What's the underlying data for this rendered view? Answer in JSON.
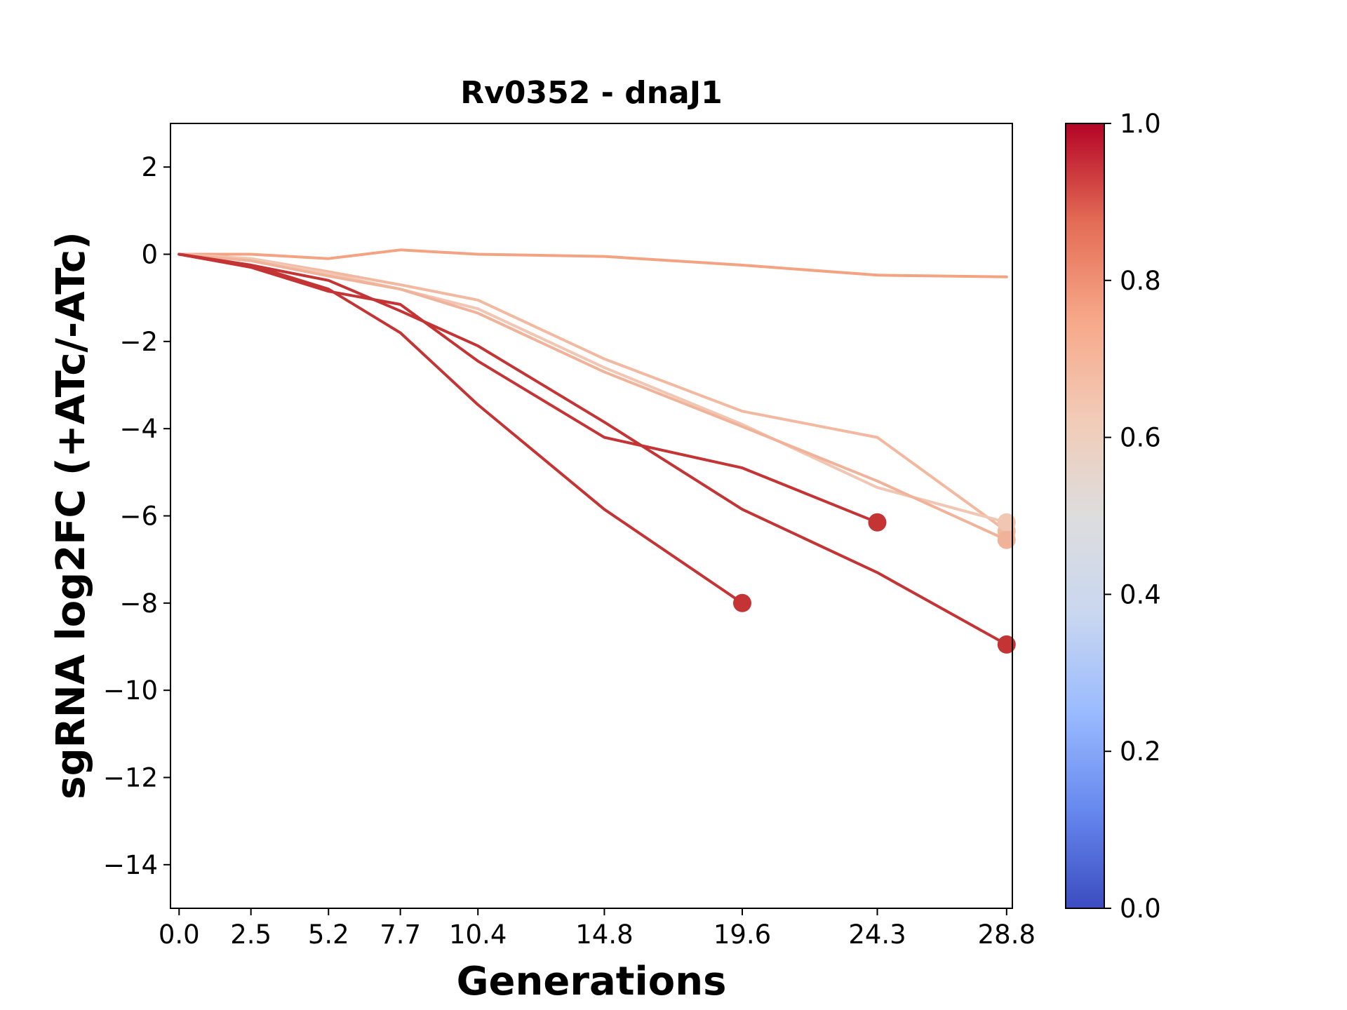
{
  "chart_data": {
    "type": "line",
    "title": "Rv0352 - dnaJ1",
    "xlabel": "Generations",
    "ylabel": "sgRNA log2FC (+ATc/-ATc)",
    "xlim": [
      -0.3,
      29.0
    ],
    "ylim": [
      -15,
      3
    ],
    "x_ticks": [
      0.0,
      2.5,
      5.2,
      7.7,
      10.4,
      14.8,
      19.6,
      24.3,
      28.8
    ],
    "x_tick_labels": [
      "0.0",
      "2.5",
      "5.2",
      "7.7",
      "10.4",
      "14.8",
      "19.6",
      "24.3",
      "28.8"
    ],
    "y_ticks": [
      2,
      0,
      -2,
      -4,
      -6,
      -8,
      -10,
      -12,
      -14
    ],
    "y_tick_labels": [
      "2",
      "0",
      "−2",
      "−4",
      "−6",
      "−8",
      "−10",
      "−12",
      "−14"
    ],
    "colorbar": {
      "colormap": "coolwarm",
      "range": [
        0.0,
        1.0
      ],
      "ticks": [
        0.0,
        0.2,
        0.4,
        0.6,
        0.8,
        1.0
      ],
      "tick_labels": [
        "0.0",
        "0.2",
        "0.4",
        "0.6",
        "0.8",
        "1.0"
      ],
      "stops": [
        "#3b4cc0",
        "#6788ee",
        "#9abbff",
        "#c9d7f0",
        "#dddddd",
        "#f2cbb7",
        "#f7a889",
        "#e36c55",
        "#b40426"
      ]
    },
    "series": [
      {
        "color": "#f4a382",
        "x": [
          0.0,
          2.5,
          5.2,
          7.7,
          10.4,
          14.8,
          19.6,
          24.3,
          28.8
        ],
        "y": [
          0.0,
          0.0,
          -0.1,
          0.1,
          0.0,
          -0.05,
          -0.25,
          -0.48,
          -0.52
        ],
        "end_marker": false
      },
      {
        "color": "#f2b9a0",
        "x": [
          0.0,
          2.5,
          5.2,
          7.7,
          10.4,
          14.8,
          19.6,
          24.3,
          28.8
        ],
        "y": [
          0.0,
          -0.1,
          -0.4,
          -0.7,
          -1.05,
          -2.4,
          -3.6,
          -4.2,
          -6.35
        ],
        "end_marker": true
      },
      {
        "color": "#f1c6b2",
        "x": [
          0.0,
          2.5,
          5.2,
          7.7,
          10.4,
          14.8,
          19.6,
          24.3,
          28.8
        ],
        "y": [
          0.0,
          -0.1,
          -0.45,
          -0.8,
          -1.25,
          -2.6,
          -3.9,
          -5.35,
          -6.15
        ],
        "end_marker": true
      },
      {
        "color": "#f0b39a",
        "x": [
          0.0,
          2.5,
          5.2,
          7.7,
          10.4,
          14.8,
          19.6,
          24.3,
          28.8
        ],
        "y": [
          0.0,
          -0.15,
          -0.5,
          -0.8,
          -1.35,
          -2.7,
          -3.95,
          -5.2,
          -6.55
        ],
        "end_marker": true
      },
      {
        "color": "#c43434",
        "x": [
          0.0,
          2.5,
          5.2,
          7.7,
          10.4,
          14.8,
          19.6,
          24.3
        ],
        "y": [
          0.0,
          -0.3,
          -0.85,
          -1.15,
          -2.45,
          -4.2,
          -4.9,
          -6.15
        ],
        "end_marker": true
      },
      {
        "color": "#c43434",
        "x": [
          0.0,
          2.5,
          5.2,
          7.7,
          10.4,
          14.8,
          19.6,
          24.3,
          28.8
        ],
        "y": [
          0.0,
          -0.25,
          -0.6,
          -1.3,
          -2.1,
          -3.85,
          -5.85,
          -7.3,
          -8.95
        ],
        "end_marker": true
      },
      {
        "color": "#c43434",
        "x": [
          0.0,
          2.5,
          5.2,
          7.7,
          10.4,
          14.8,
          19.6
        ],
        "y": [
          0.0,
          -0.25,
          -0.8,
          -1.8,
          -3.45,
          -5.85,
          -8.0
        ],
        "end_marker": true
      }
    ]
  }
}
